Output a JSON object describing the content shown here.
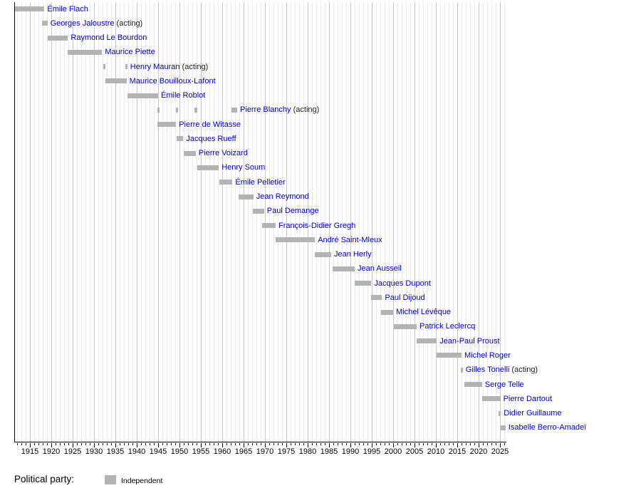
{
  "colors": {
    "bar": "#b3b3b3",
    "link_text": "#0000cc",
    "acting_text": "#1f1f1f",
    "grid_minor": "#eaeaea",
    "grid_major": "#c8c8c8",
    "axis": "#000000"
  },
  "chart_data": {
    "type": "timeline",
    "acting_suffix": "(acting)",
    "x_axis": {
      "start": 1911.5,
      "end": 2026.5,
      "minor_tick_interval": 1,
      "major_tick_interval": 5,
      "tick_labels": [
        "1915",
        "1920",
        "1925",
        "1930",
        "1935",
        "1940",
        "1945",
        "1950",
        "1955",
        "1960",
        "1965",
        "1970",
        "1975",
        "1980",
        "1985",
        "1990",
        "1995",
        "2000",
        "2005",
        "2010",
        "2015",
        "2020",
        "2025"
      ]
    },
    "legend": {
      "title": "Political party:",
      "entries": [
        {
          "label": "Independent",
          "color": "#b3b3b3"
        }
      ]
    },
    "bar_color": "#b3b3b3",
    "ministers": [
      {
        "name": "Émile Flach",
        "acting": false,
        "party": "Independent",
        "terms": [
          [
            1911.5,
            1918.4
          ]
        ]
      },
      {
        "name": "Georges Jaloustre",
        "acting": true,
        "party": "Independent",
        "terms": [
          [
            1917.9,
            1919.1
          ]
        ]
      },
      {
        "name": "Raymond Le Bourdon",
        "acting": false,
        "party": "Independent",
        "terms": [
          [
            1919.2,
            1923.9
          ]
        ]
      },
      {
        "name": "Maurice Piette",
        "acting": false,
        "party": "Independent",
        "terms": [
          [
            1923.9,
            1931.9
          ]
        ]
      },
      {
        "name": "Henry Mauran",
        "acting": true,
        "party": "Independent",
        "terms": [
          [
            1932.1,
            1932.6
          ],
          [
            1937.4,
            1937.8
          ]
        ]
      },
      {
        "name": "Maurice Bouilloux-Lafont",
        "acting": false,
        "party": "Independent",
        "terms": [
          [
            1932.7,
            1937.6
          ]
        ]
      },
      {
        "name": "Émile Roblot",
        "acting": false,
        "party": "Independent",
        "terms": [
          [
            1937.8,
            1945.0
          ]
        ]
      },
      {
        "name": "Pierre Blanchy",
        "acting": true,
        "party": "Independent",
        "terms": [
          [
            1944.8,
            1945.3
          ],
          [
            1949.2,
            1949.7
          ],
          [
            1953.5,
            1954.1
          ],
          [
            1962.2,
            1963.5
          ]
        ]
      },
      {
        "name": "Pierre de Witasse",
        "acting": false,
        "party": "Independent",
        "terms": [
          [
            1944.9,
            1949.2
          ]
        ]
      },
      {
        "name": "Jacques Rueff",
        "acting": false,
        "party": "Independent",
        "terms": [
          [
            1949.3,
            1950.9
          ]
        ]
      },
      {
        "name": "Pierre Voizard",
        "acting": false,
        "party": "Independent",
        "terms": [
          [
            1951.0,
            1953.8
          ]
        ]
      },
      {
        "name": "Henry Soum",
        "acting": false,
        "party": "Independent",
        "terms": [
          [
            1954.2,
            1959.2
          ]
        ]
      },
      {
        "name": "Émile Pelletier",
        "acting": false,
        "party": "Independent",
        "terms": [
          [
            1959.3,
            1962.4
          ]
        ]
      },
      {
        "name": "Jean Reymond",
        "acting": false,
        "party": "Independent",
        "terms": [
          [
            1963.8,
            1967.3
          ]
        ]
      },
      {
        "name": "Paul Demange",
        "acting": false,
        "party": "Independent",
        "terms": [
          [
            1967.2,
            1969.8
          ]
        ]
      },
      {
        "name": "François-Didier Gregh",
        "acting": false,
        "party": "Independent",
        "terms": [
          [
            1969.4,
            1972.5
          ]
        ]
      },
      {
        "name": "André Saint-Mleux",
        "acting": false,
        "party": "Independent",
        "terms": [
          [
            1972.5,
            1981.7
          ]
        ]
      },
      {
        "name": "Jean Herly",
        "acting": false,
        "party": "Independent",
        "terms": [
          [
            1981.7,
            1985.5
          ]
        ]
      },
      {
        "name": "Jean Ausseil",
        "acting": false,
        "party": "Independent",
        "terms": [
          [
            1985.8,
            1991.0
          ]
        ]
      },
      {
        "name": "Jacques Dupont",
        "acting": false,
        "party": "Independent",
        "terms": [
          [
            1991.0,
            1994.9
          ]
        ]
      },
      {
        "name": "Paul Dijoud",
        "acting": false,
        "party": "Independent",
        "terms": [
          [
            1994.9,
            1997.4
          ]
        ]
      },
      {
        "name": "Michel Lévêque",
        "acting": false,
        "party": "Independent",
        "terms": [
          [
            1997.2,
            2000.0
          ]
        ]
      },
      {
        "name": "Patrick Leclercq",
        "acting": false,
        "party": "Independent",
        "terms": [
          [
            2000.2,
            2005.5
          ]
        ]
      },
      {
        "name": "Jean-Paul Proust",
        "acting": false,
        "party": "Independent",
        "terms": [
          [
            2005.5,
            2010.2
          ]
        ]
      },
      {
        "name": "Michel Roger",
        "acting": false,
        "party": "Independent",
        "terms": [
          [
            2010.2,
            2016.0
          ]
        ]
      },
      {
        "name": "Gilles Tonelli",
        "acting": true,
        "party": "Independent",
        "terms": [
          [
            2015.9,
            2016.3
          ]
        ]
      },
      {
        "name": "Serge Telle",
        "acting": false,
        "party": "Independent",
        "terms": [
          [
            2016.7,
            2020.8
          ]
        ]
      },
      {
        "name": "Pierre Dartout",
        "acting": false,
        "party": "Independent",
        "terms": [
          [
            2020.8,
            2025.1
          ]
        ]
      },
      {
        "name": "Didier Guillaume",
        "acting": false,
        "party": "Independent",
        "terms": [
          [
            2024.7,
            2025.2
          ]
        ]
      },
      {
        "name": "Isabelle Berro-Amadeï",
        "acting": false,
        "party": "Independent",
        "terms": [
          [
            2025.2,
            2026.3
          ]
        ]
      }
    ]
  }
}
